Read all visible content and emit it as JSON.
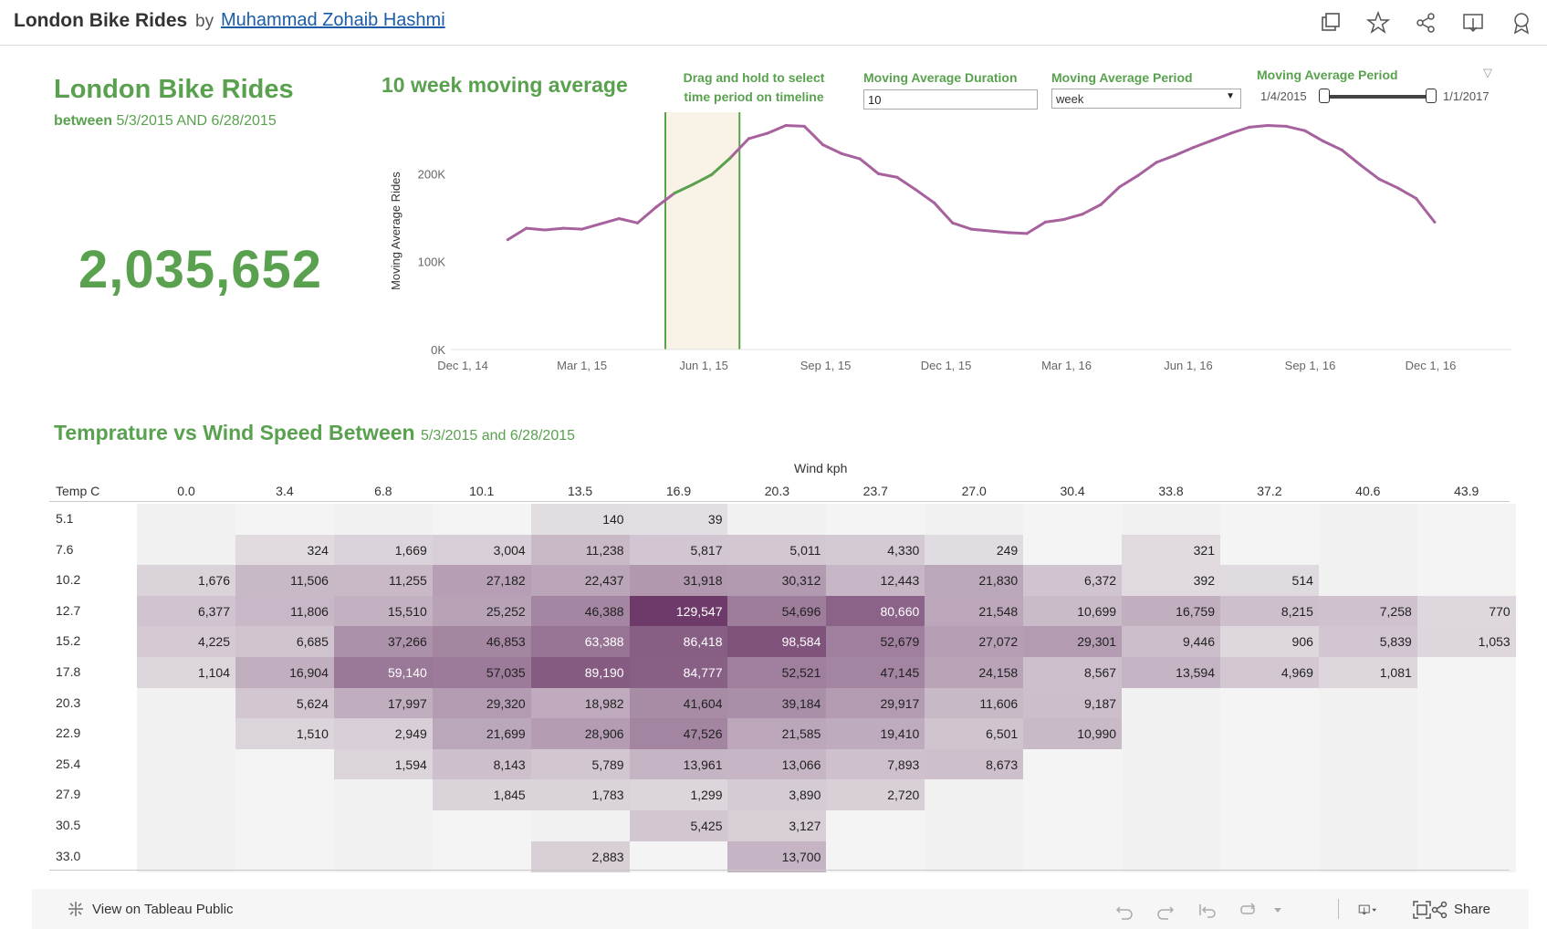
{
  "header": {
    "title": "London Bike Rides",
    "by": "by",
    "author": "Muhammad Zohaib Hashmi",
    "icons": [
      "duplicate-icon",
      "star-icon",
      "share-icon",
      "download-icon",
      "badge-icon"
    ]
  },
  "kpi": {
    "title": "London Bike Rides",
    "between": "between",
    "dates": "5/3/2015 AND 6/28/2015",
    "value": "2,035,652"
  },
  "controls": {
    "chart_title": "10  week moving average",
    "drag_hint": "Drag and hold to select time period on timeline",
    "duration_label": "Moving Average Duration",
    "duration_value": "10",
    "period_label": "Moving Average Period",
    "period_value": "week",
    "range_label": "Moving Average Period",
    "range_start": "1/4/2015",
    "range_end": "1/1/2017"
  },
  "chart_data": {
    "type": "line",
    "ylabel": "Moving Average Rides",
    "yticks": [
      "0K",
      "100K",
      "200K"
    ],
    "ylim": [
      0,
      270000
    ],
    "xticks": [
      "Dec 1, 14",
      "Mar 1, 15",
      "Jun 1, 15",
      "Sep 1, 15",
      "Dec 1, 15",
      "Mar 1, 16",
      "Jun 1, 16",
      "Sep 1, 16",
      "Dec 1, 16"
    ],
    "xlim": [
      "2014-11-22",
      "2017-01-31"
    ],
    "highlight": {
      "from": "2015-05-03",
      "to": "2015-06-28"
    },
    "series": [
      {
        "color_normal": "#a7629e",
        "color_highlight": "#59a14f",
        "points": [
          [
            "2015-01-04",
            125000
          ],
          [
            "2015-01-18",
            138000
          ],
          [
            "2015-02-01",
            136000
          ],
          [
            "2015-02-15",
            138000
          ],
          [
            "2015-03-01",
            137000
          ],
          [
            "2015-03-15",
            143000
          ],
          [
            "2015-03-29",
            149000
          ],
          [
            "2015-04-12",
            144000
          ],
          [
            "2015-04-26",
            162000
          ],
          [
            "2015-05-10",
            178000
          ],
          [
            "2015-05-24",
            188000
          ],
          [
            "2015-06-07",
            199000
          ],
          [
            "2015-06-21",
            218000
          ],
          [
            "2015-07-05",
            240000
          ],
          [
            "2015-07-19",
            246000
          ],
          [
            "2015-08-02",
            255000
          ],
          [
            "2015-08-16",
            254000
          ],
          [
            "2015-08-30",
            233000
          ],
          [
            "2015-09-13",
            223000
          ],
          [
            "2015-09-27",
            217000
          ],
          [
            "2015-10-11",
            200000
          ],
          [
            "2015-10-25",
            196000
          ],
          [
            "2015-11-08",
            182000
          ],
          [
            "2015-11-22",
            167000
          ],
          [
            "2015-12-06",
            144000
          ],
          [
            "2015-12-20",
            137000
          ],
          [
            "2016-01-03",
            135000
          ],
          [
            "2016-01-17",
            133000
          ],
          [
            "2016-01-31",
            132000
          ],
          [
            "2016-02-14",
            145000
          ],
          [
            "2016-02-28",
            148000
          ],
          [
            "2016-03-13",
            154000
          ],
          [
            "2016-03-27",
            165000
          ],
          [
            "2016-04-10",
            185000
          ],
          [
            "2016-04-24",
            198000
          ],
          [
            "2016-05-08",
            213000
          ],
          [
            "2016-05-22",
            221000
          ],
          [
            "2016-06-05",
            230000
          ],
          [
            "2016-06-19",
            238000
          ],
          [
            "2016-07-03",
            246000
          ],
          [
            "2016-07-17",
            253000
          ],
          [
            "2016-07-31",
            255000
          ],
          [
            "2016-08-14",
            254000
          ],
          [
            "2016-08-28",
            249000
          ],
          [
            "2016-09-11",
            237000
          ],
          [
            "2016-09-25",
            227000
          ],
          [
            "2016-10-09",
            210000
          ],
          [
            "2016-10-23",
            194000
          ],
          [
            "2016-11-06",
            184000
          ],
          [
            "2016-11-20",
            172000
          ],
          [
            "2016-12-04",
            145000
          ]
        ]
      }
    ]
  },
  "heatmap": {
    "title": "Temprature vs Wind Speed Between",
    "dates": "5/3/2015 and 6/28/2015",
    "x_label": "Wind kph",
    "y_label": "Temp C",
    "columns": [
      "0.0",
      "3.4",
      "6.8",
      "10.1",
      "13.5",
      "16.9",
      "20.3",
      "23.7",
      "27.0",
      "30.4",
      "33.8",
      "37.2",
      "40.6",
      "43.9"
    ],
    "rows": [
      {
        "temp": "5.1",
        "cells": [
          null,
          null,
          null,
          null,
          "140",
          "39",
          null,
          null,
          null,
          null,
          null,
          null,
          null,
          null
        ]
      },
      {
        "temp": "7.6",
        "cells": [
          null,
          "324",
          "1,669",
          "3,004",
          "11,238",
          "5,817",
          "5,011",
          "4,330",
          "249",
          null,
          "321",
          null,
          null,
          null
        ]
      },
      {
        "temp": "10.2",
        "cells": [
          "1,676",
          "11,506",
          "11,255",
          "27,182",
          "22,437",
          "31,918",
          "30,312",
          "12,443",
          "21,830",
          "6,372",
          "392",
          "514",
          null,
          null
        ]
      },
      {
        "temp": "12.7",
        "cells": [
          "6,377",
          "11,806",
          "15,510",
          "25,252",
          "46,388",
          "129,547",
          "54,696",
          "80,660",
          "21,548",
          "10,699",
          "16,759",
          "8,215",
          "7,258",
          "770"
        ]
      },
      {
        "temp": "15.2",
        "cells": [
          "4,225",
          "6,685",
          "37,266",
          "46,853",
          "63,388",
          "86,418",
          "98,584",
          "52,679",
          "27,072",
          "29,301",
          "9,446",
          "906",
          "5,839",
          "1,053"
        ]
      },
      {
        "temp": "17.8",
        "cells": [
          "1,104",
          "16,904",
          "59,140",
          "57,035",
          "89,190",
          "84,777",
          "52,521",
          "47,145",
          "24,158",
          "8,567",
          "13,594",
          "4,969",
          "1,081",
          null
        ]
      },
      {
        "temp": "20.3",
        "cells": [
          null,
          "5,624",
          "17,997",
          "29,320",
          "18,982",
          "41,604",
          "39,184",
          "29,917",
          "11,606",
          "9,187",
          null,
          null,
          null,
          null
        ]
      },
      {
        "temp": "22.9",
        "cells": [
          null,
          "1,510",
          "2,949",
          "21,699",
          "28,906",
          "47,526",
          "21,585",
          "19,410",
          "6,501",
          "10,990",
          null,
          null,
          null,
          null
        ]
      },
      {
        "temp": "25.4",
        "cells": [
          null,
          null,
          "1,594",
          "8,143",
          "5,789",
          "13,961",
          "13,066",
          "7,893",
          "8,673",
          null,
          null,
          null,
          null,
          null
        ]
      },
      {
        "temp": "27.9",
        "cells": [
          null,
          null,
          null,
          "1,845",
          "1,783",
          "1,299",
          "3,890",
          "2,720",
          null,
          null,
          null,
          null,
          null,
          null
        ]
      },
      {
        "temp": "30.5",
        "cells": [
          null,
          null,
          null,
          null,
          null,
          "5,425",
          "3,127",
          null,
          null,
          null,
          null,
          null,
          null,
          null
        ]
      },
      {
        "temp": "33.0",
        "cells": [
          null,
          null,
          null,
          null,
          "2,883",
          null,
          "13,700",
          null,
          null,
          null,
          null,
          null,
          null,
          null
        ]
      }
    ],
    "color_low": "#eeeeee",
    "color_high": "#6e3a6a"
  },
  "footer": {
    "view_label": "View on Tableau Public",
    "share_label": "Share",
    "icons": [
      "undo-icon",
      "redo-icon",
      "revert-icon",
      "refresh-icon",
      "download-icon",
      "fullscreen-icon",
      "share-icon"
    ]
  }
}
